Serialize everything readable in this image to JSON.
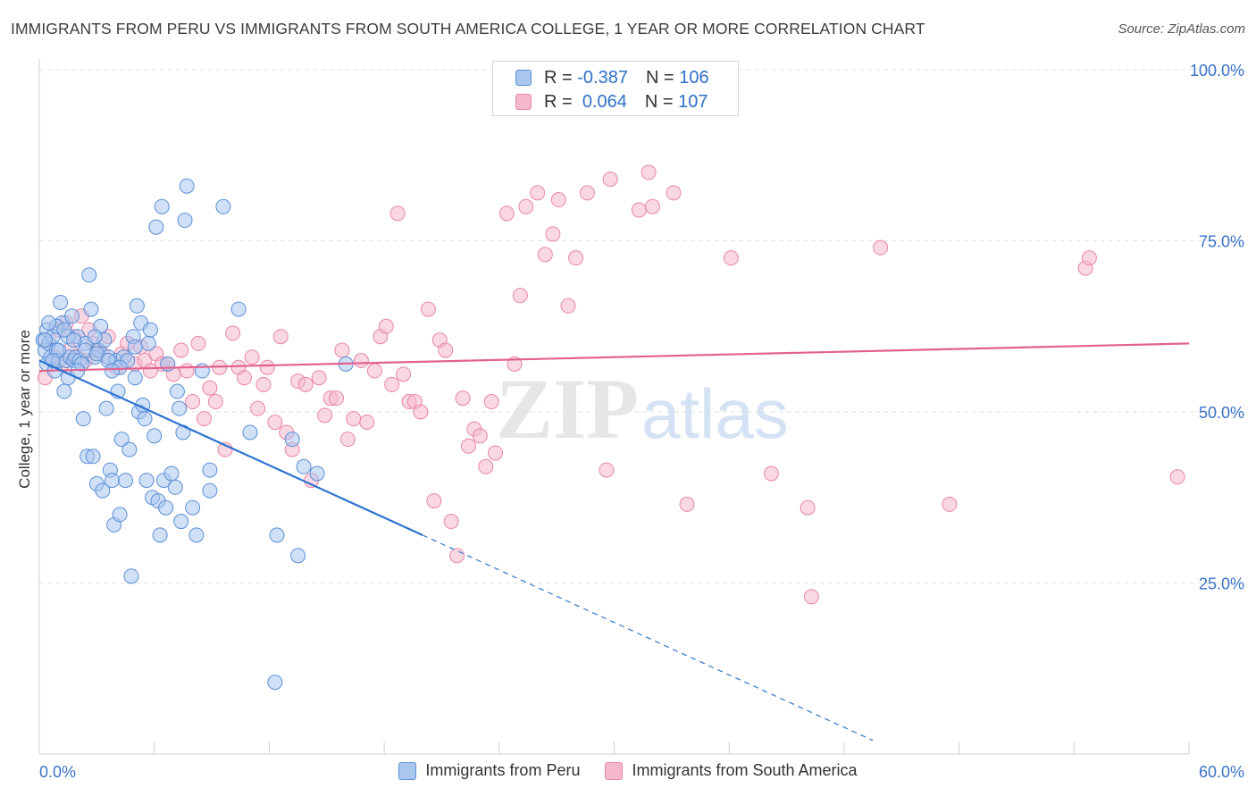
{
  "title": "IMMIGRANTS FROM PERU VS IMMIGRANTS FROM SOUTH AMERICA COLLEGE, 1 YEAR OR MORE CORRELATION CHART",
  "source": "Source: ZipAtlas.com",
  "watermark": {
    "zip": "ZIP",
    "atlas": "atlas"
  },
  "legend": {
    "rows": [
      {
        "r_label": "R =",
        "r_value": "-0.387",
        "n_label": "N =",
        "n_value": "106"
      },
      {
        "r_label": "R =",
        "r_value": "0.064",
        "n_label": "N =",
        "n_value": "107"
      }
    ]
  },
  "bottom_legend": [
    "Immigrants from Peru",
    "Immigrants from South America"
  ],
  "colors": {
    "peru_fill": "#a9c6ee",
    "peru_stroke": "#5b8fd8",
    "peru_line": "#2f74d0",
    "sa_fill": "#f5b8cb",
    "sa_stroke": "#e886a6",
    "sa_line": "#e2628e",
    "axis_text": "#3a72c8",
    "grid": "#e2e2e2"
  },
  "chart_data": {
    "type": "scatter",
    "xlabel": "",
    "ylabel": "College, 1 year or more",
    "xlim": [
      0,
      60
    ],
    "ylim": [
      0,
      100
    ],
    "x_tick_labels": [
      "0.0%",
      "60.0%"
    ],
    "y_tick_labels": [
      "100.0%",
      "75.0%",
      "50.0%",
      "25.0%"
    ],
    "y_ticks": [
      100,
      75,
      50,
      25
    ],
    "grid": true,
    "series": [
      {
        "name": "Immigrants from Peru",
        "trend": {
          "x0": 0,
          "y0": 57.5,
          "x1": 20,
          "y1": 32,
          "dash_to_x": 43.5,
          "dash_to_y": 2
        },
        "points": [
          [
            0.2,
            60.5
          ],
          [
            0.3,
            59
          ],
          [
            0.4,
            57
          ],
          [
            0.4,
            62
          ],
          [
            0.5,
            60
          ],
          [
            0.6,
            58
          ],
          [
            0.7,
            61
          ],
          [
            0.8,
            56
          ],
          [
            0.9,
            59
          ],
          [
            1.0,
            57.5
          ],
          [
            1.1,
            66
          ],
          [
            1.2,
            63
          ],
          [
            1.3,
            53
          ],
          [
            1.4,
            57.5
          ],
          [
            1.5,
            55
          ],
          [
            1.6,
            58
          ],
          [
            1.7,
            64
          ],
          [
            1.8,
            57.5
          ],
          [
            1.9,
            58
          ],
          [
            2.0,
            61
          ],
          [
            2.1,
            57.5
          ],
          [
            2.2,
            57
          ],
          [
            2.3,
            49
          ],
          [
            2.4,
            60
          ],
          [
            2.5,
            43.5
          ],
          [
            2.6,
            70
          ],
          [
            2.7,
            65
          ],
          [
            2.8,
            43.5
          ],
          [
            2.9,
            58
          ],
          [
            3.0,
            39.5
          ],
          [
            3.1,
            59
          ],
          [
            3.2,
            62.5
          ],
          [
            3.3,
            38.5
          ],
          [
            3.4,
            60.5
          ],
          [
            3.5,
            50.5
          ],
          [
            3.6,
            58
          ],
          [
            3.7,
            41.5
          ],
          [
            3.8,
            40
          ],
          [
            3.9,
            33.5
          ],
          [
            4.0,
            57.5
          ],
          [
            4.1,
            53
          ],
          [
            4.2,
            35
          ],
          [
            4.3,
            46
          ],
          [
            4.4,
            58
          ],
          [
            4.5,
            40
          ],
          [
            4.6,
            57.5
          ],
          [
            4.7,
            44.5
          ],
          [
            4.8,
            26
          ],
          [
            4.9,
            61
          ],
          [
            5.0,
            59.5
          ],
          [
            5.1,
            65.5
          ],
          [
            5.2,
            50
          ],
          [
            5.3,
            63
          ],
          [
            5.4,
            51
          ],
          [
            5.5,
            49
          ],
          [
            5.6,
            40
          ],
          [
            5.7,
            60
          ],
          [
            5.8,
            62
          ],
          [
            5.9,
            37.5
          ],
          [
            6.0,
            46.5
          ],
          [
            6.1,
            77
          ],
          [
            6.2,
            37
          ],
          [
            6.3,
            32
          ],
          [
            6.4,
            80
          ],
          [
            6.5,
            40
          ],
          [
            6.6,
            36
          ],
          [
            6.7,
            57
          ],
          [
            6.9,
            41
          ],
          [
            7.1,
            39
          ],
          [
            7.2,
            53
          ],
          [
            7.3,
            50.5
          ],
          [
            7.4,
            34
          ],
          [
            7.5,
            47
          ],
          [
            7.6,
            78
          ],
          [
            7.7,
            83
          ],
          [
            8.0,
            36
          ],
          [
            8.2,
            32
          ],
          [
            8.5,
            56
          ],
          [
            8.9,
            41.5
          ],
          [
            8.9,
            38.5
          ],
          [
            9.6,
            80
          ],
          [
            10.4,
            65
          ],
          [
            11.0,
            47
          ],
          [
            12.3,
            10.5
          ],
          [
            12.4,
            32
          ],
          [
            13.2,
            46
          ],
          [
            13.5,
            29
          ],
          [
            13.8,
            42
          ],
          [
            14.5,
            41
          ],
          [
            16.0,
            57
          ],
          [
            1.0,
            59
          ],
          [
            0.9,
            62.5
          ],
          [
            1.5,
            61
          ],
          [
            2.0,
            56
          ],
          [
            2.4,
            59
          ],
          [
            3.0,
            58.5
          ],
          [
            3.6,
            57.5
          ],
          [
            4.2,
            56.5
          ],
          [
            0.5,
            63
          ],
          [
            0.7,
            57.5
          ],
          [
            1.3,
            62
          ],
          [
            1.8,
            60.5
          ],
          [
            2.9,
            61
          ],
          [
            3.8,
            56
          ],
          [
            5.0,
            55
          ],
          [
            0.3,
            60.5
          ]
        ]
      },
      {
        "name": "Immigrants from South America",
        "trend": {
          "x0": 0,
          "y0": 56,
          "x1": 60,
          "y1": 60
        },
        "points": [
          [
            0.3,
            55
          ],
          [
            0.5,
            60
          ],
          [
            0.8,
            58
          ],
          [
            1.0,
            62
          ],
          [
            1.2,
            57
          ],
          [
            1.4,
            63
          ],
          [
            1.6,
            59
          ],
          [
            1.8,
            61
          ],
          [
            2.0,
            58
          ],
          [
            2.2,
            64
          ],
          [
            2.4,
            57.5
          ],
          [
            2.6,
            62
          ],
          [
            2.8,
            60
          ],
          [
            3.0,
            59
          ],
          [
            3.3,
            58.5
          ],
          [
            3.6,
            61
          ],
          [
            4.0,
            56.5
          ],
          [
            4.3,
            58.5
          ],
          [
            4.6,
            60
          ],
          [
            5.0,
            57
          ],
          [
            5.3,
            59.5
          ],
          [
            5.5,
            57.5
          ],
          [
            5.8,
            56
          ],
          [
            6.1,
            58.5
          ],
          [
            6.4,
            57
          ],
          [
            6.7,
            57
          ],
          [
            7.0,
            55.5
          ],
          [
            7.4,
            59
          ],
          [
            7.7,
            56
          ],
          [
            8.0,
            51.5
          ],
          [
            8.3,
            60
          ],
          [
            8.6,
            49
          ],
          [
            8.9,
            53.5
          ],
          [
            9.2,
            51.5
          ],
          [
            9.4,
            56.5
          ],
          [
            9.7,
            44.5
          ],
          [
            10.1,
            61.5
          ],
          [
            10.4,
            56.5
          ],
          [
            10.7,
            55
          ],
          [
            11.1,
            58
          ],
          [
            11.4,
            50.5
          ],
          [
            11.7,
            54
          ],
          [
            11.9,
            56.5
          ],
          [
            12.3,
            48.5
          ],
          [
            12.6,
            61
          ],
          [
            12.9,
            47
          ],
          [
            13.2,
            44.5
          ],
          [
            13.5,
            54.5
          ],
          [
            13.9,
            54
          ],
          [
            14.2,
            40
          ],
          [
            14.6,
            55
          ],
          [
            14.9,
            49.5
          ],
          [
            15.2,
            52
          ],
          [
            15.5,
            52
          ],
          [
            15.8,
            59
          ],
          [
            16.1,
            46
          ],
          [
            16.4,
            49
          ],
          [
            16.8,
            57.5
          ],
          [
            17.1,
            48.5
          ],
          [
            17.5,
            56
          ],
          [
            17.8,
            61
          ],
          [
            18.1,
            62.5
          ],
          [
            18.4,
            54
          ],
          [
            18.7,
            79
          ],
          [
            19.0,
            55.5
          ],
          [
            19.3,
            51.5
          ],
          [
            19.6,
            51.5
          ],
          [
            19.9,
            50
          ],
          [
            20.3,
            65
          ],
          [
            20.6,
            37
          ],
          [
            20.9,
            60.5
          ],
          [
            21.2,
            59
          ],
          [
            21.5,
            34
          ],
          [
            21.8,
            29
          ],
          [
            22.1,
            52
          ],
          [
            22.4,
            45
          ],
          [
            22.7,
            47.5
          ],
          [
            23.0,
            46.5
          ],
          [
            23.3,
            42
          ],
          [
            23.6,
            51.5
          ],
          [
            23.8,
            44
          ],
          [
            24.4,
            79
          ],
          [
            24.8,
            57
          ],
          [
            25.1,
            67
          ],
          [
            25.4,
            80
          ],
          [
            26.0,
            82
          ],
          [
            26.4,
            73
          ],
          [
            26.8,
            76
          ],
          [
            27.1,
            81
          ],
          [
            27.6,
            65.5
          ],
          [
            28.0,
            72.5
          ],
          [
            28.6,
            82
          ],
          [
            29.6,
            41.5
          ],
          [
            29.8,
            84
          ],
          [
            31.3,
            79.5
          ],
          [
            31.8,
            85
          ],
          [
            32.0,
            80
          ],
          [
            33.1,
            82
          ],
          [
            33.8,
            36.5
          ],
          [
            36.1,
            72.5
          ],
          [
            38.2,
            41
          ],
          [
            40.1,
            36
          ],
          [
            40.3,
            23
          ],
          [
            43.9,
            74
          ],
          [
            47.5,
            36.5
          ],
          [
            54.6,
            71
          ],
          [
            54.8,
            72.5
          ],
          [
            59.4,
            40.5
          ]
        ]
      }
    ]
  }
}
